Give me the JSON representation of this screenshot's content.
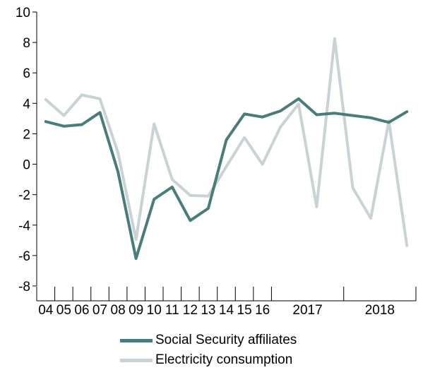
{
  "chart_data": {
    "type": "line",
    "title": "",
    "xlabel": "",
    "ylabel": "",
    "ylim": [
      -8,
      10
    ],
    "yticks": [
      "10",
      "8",
      "6",
      "4",
      "2",
      "0",
      "-2",
      "-4",
      "-6",
      "-8"
    ],
    "x_group_labels": [
      "04",
      "05",
      "06",
      "07",
      "08",
      "09",
      "10",
      "11",
      "12",
      "13",
      "14",
      "15",
      "16",
      "2017",
      "2018"
    ],
    "x": [
      "2004",
      "2005",
      "2006",
      "2007",
      "2008",
      "2009",
      "2010",
      "2011",
      "2012",
      "2013",
      "2014",
      "2015",
      "2016",
      "2017 Q1",
      "2017 Q2",
      "2017 Q3",
      "2017 Q4",
      "2018 Q1",
      "2018 Q2",
      "2018 Q3",
      "2018 Q4"
    ],
    "series": [
      {
        "name": "Social Security affiliates",
        "color": "#4a7c7b",
        "values": [
          2.8,
          2.5,
          2.6,
          3.4,
          -0.5,
          -6.2,
          -2.3,
          -1.5,
          -3.7,
          -2.9,
          1.6,
          3.3,
          3.1,
          3.5,
          4.3,
          3.25,
          3.35,
          3.2,
          3.05,
          2.75,
          3.45
        ]
      },
      {
        "name": "Electricity consumption",
        "color": "#c9d3d6",
        "values": [
          4.25,
          3.2,
          4.55,
          4.3,
          0.75,
          -4.95,
          2.65,
          -1.0,
          -2.05,
          -2.1,
          -0.15,
          1.75,
          0.0,
          2.45,
          3.95,
          -2.8,
          8.25,
          -1.55,
          -3.55,
          2.85,
          -5.35
        ]
      }
    ],
    "grid": false,
    "legend_position": "bottom"
  }
}
